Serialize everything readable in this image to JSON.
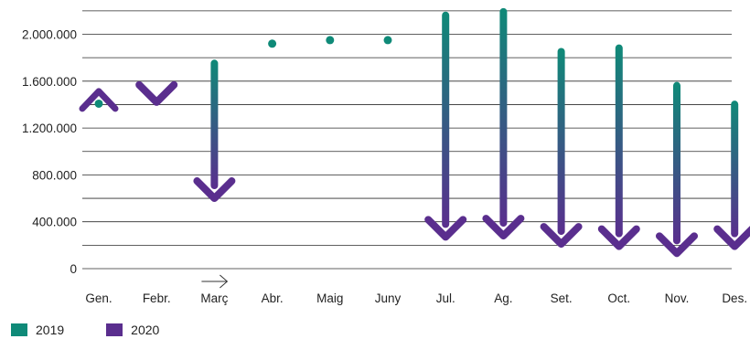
{
  "chart_data": {
    "type": "line",
    "categories": [
      "Gen.",
      "Febr.",
      "Març",
      "Abr.",
      "Maig",
      "Juny",
      "Jul.",
      "Ag.",
      "Set.",
      "Oct.",
      "Nov.",
      "Des."
    ],
    "ylim": [
      0,
      2200000
    ],
    "yticks": [
      0,
      400000,
      800000,
      1200000,
      1600000,
      2000000
    ],
    "ytick_labels": [
      "0",
      "400.000",
      "800.000",
      "1.200.000",
      "1.600.000",
      "2.000.000"
    ],
    "grid": true,
    "legend_position": "bottom-left",
    "series": [
      {
        "name": "2019",
        "color": "#0f8a78",
        "values": [
          1400000,
          1430000,
          1760000,
          1920000,
          1950000,
          1950000,
          2170000,
          2200000,
          1860000,
          1890000,
          1570000,
          1410000
        ]
      },
      {
        "name": "2020",
        "color": "#5a2e8e",
        "values": [
          1420000,
          1420000,
          600000,
          null,
          null,
          null,
          270000,
          280000,
          210000,
          190000,
          130000,
          190000
        ]
      }
    ],
    "annotations": [
      {
        "text": "→",
        "near": "Març"
      }
    ]
  }
}
